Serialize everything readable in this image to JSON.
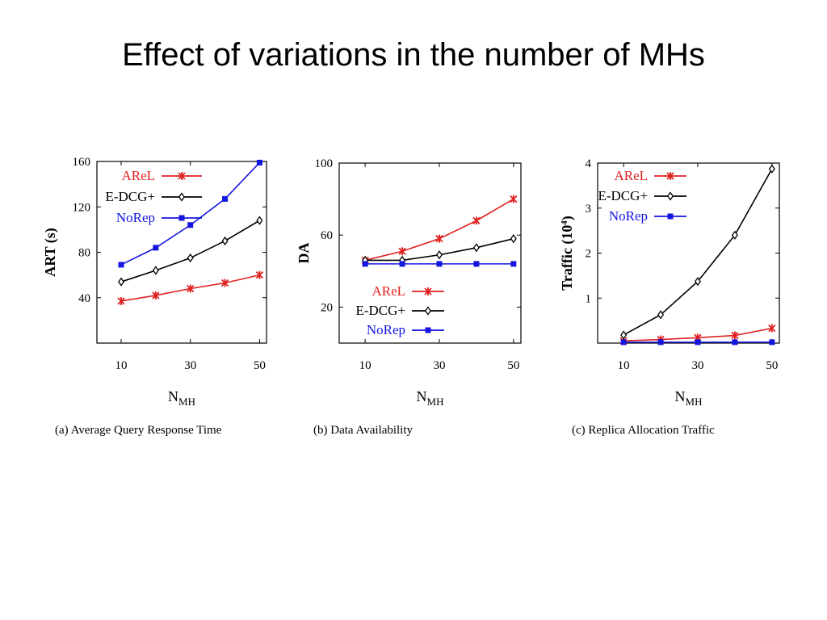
{
  "title": "Effect of variations in the number of MHs",
  "colors": {
    "AReL": "#e02020",
    "E-DCG+": "#000000",
    "NoRep": "#1515e0"
  },
  "chart_data": [
    {
      "type": "line",
      "caption": "(a)  Average Query Response Time",
      "xlabel": {
        "main": "N",
        "sub": "MH"
      },
      "ylabel": {
        "main": "ART (s)",
        "sup": ""
      },
      "x_ticks": [
        "10",
        "30",
        "50"
      ],
      "y_ticks": [
        "40",
        "80",
        "120",
        "160"
      ],
      "xlim": [
        3,
        52
      ],
      "ylim": [
        0,
        160
      ],
      "legend_position": "top-left",
      "x": [
        10,
        20,
        30,
        40,
        50
      ],
      "series": [
        {
          "name": "AReL",
          "values": [
            37,
            42,
            48,
            53,
            60
          ]
        },
        {
          "name": "E-DCG+",
          "values": [
            54,
            64,
            75,
            90,
            108
          ]
        },
        {
          "name": "NoRep",
          "values": [
            69,
            84,
            104,
            127,
            159
          ]
        }
      ]
    },
    {
      "type": "line",
      "caption": "(b)  Data Availability",
      "xlabel": {
        "main": "N",
        "sub": "MH"
      },
      "ylabel": {
        "main": "DA",
        "sup": ""
      },
      "x_ticks": [
        "10",
        "30",
        "50"
      ],
      "y_ticks": [
        "20",
        "60",
        "100"
      ],
      "xlim": [
        3,
        52
      ],
      "ylim": [
        0,
        100
      ],
      "legend_position": "bottom-left",
      "x": [
        10,
        20,
        30,
        40,
        50
      ],
      "series": [
        {
          "name": "AReL",
          "values": [
            46,
            51,
            58,
            68,
            80
          ]
        },
        {
          "name": "E-DCG+",
          "values": [
            46,
            46,
            49,
            53,
            58
          ]
        },
        {
          "name": "NoRep",
          "values": [
            44,
            44,
            44,
            44,
            44
          ]
        }
      ]
    },
    {
      "type": "line",
      "caption": "(c)  Replica Allocation Traffic",
      "xlabel": {
        "main": "N",
        "sub": "MH"
      },
      "ylabel": {
        "main": "Traffic (10",
        "sup": "4",
        "suffix": ")"
      },
      "x_ticks": [
        "10",
        "30",
        "50"
      ],
      "y_ticks": [
        "1",
        "2",
        "3",
        "4"
      ],
      "xlim": [
        3,
        52
      ],
      "ylim": [
        0,
        4
      ],
      "legend_position": "top-left",
      "x": [
        10,
        20,
        30,
        40,
        50
      ],
      "series": [
        {
          "name": "AReL",
          "values": [
            0.05,
            0.08,
            0.12,
            0.17,
            0.33
          ]
        },
        {
          "name": "E-DCG+",
          "values": [
            0.18,
            0.63,
            1.37,
            2.4,
            3.87
          ]
        },
        {
          "name": "NoRep",
          "values": [
            0.02,
            0.02,
            0.02,
            0.02,
            0.02
          ]
        }
      ]
    }
  ]
}
